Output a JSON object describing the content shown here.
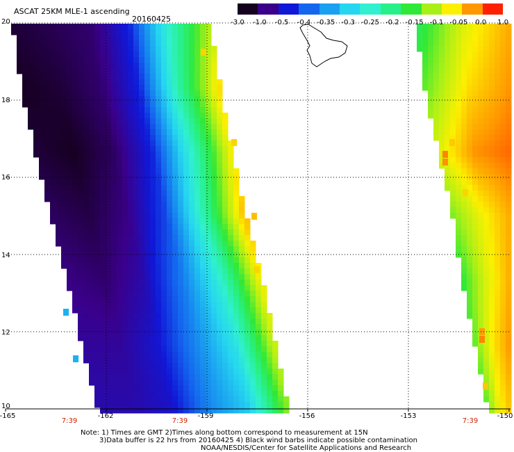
{
  "header": {
    "title": "ASCAT 25KM MLE-1 ascending",
    "date": "20160425"
  },
  "colorbar": {
    "labels": [
      "-3.0",
      "-1.0",
      "-0.5",
      "-0.4",
      "-0.35",
      "-0.3",
      "-0.25",
      "-0.2",
      "-0.15",
      "-0.1",
      "-0.05",
      "0.0",
      "1.0"
    ],
    "colors": [
      "#160020",
      "#3a008a",
      "#1018d8",
      "#1466ee",
      "#1aa0f0",
      "#26d6f0",
      "#30f0d0",
      "#28f088",
      "#30e838",
      "#a8f018",
      "#fcf000",
      "#ff9800",
      "#ff2000"
    ]
  },
  "map": {
    "lat_labels": [
      "20",
      "18",
      "16",
      "14",
      "12",
      "10"
    ],
    "lon_labels": [
      "-165",
      "-162",
      "-159",
      "-156",
      "-153",
      "-150"
    ],
    "time_labels": [
      "7:39",
      "7:39",
      "7:39"
    ],
    "land": "Big Island of Hawaii",
    "swath1_grid": [
      [
        0.02,
        0.04,
        0.06,
        0.18,
        0.5,
        0.75
      ],
      [
        0.0,
        0.02,
        0.06,
        0.18,
        0.55,
        0.85
      ],
      [
        0.02,
        0.0,
        0.05,
        0.18,
        0.5,
        0.82
      ],
      [
        0.05,
        0.03,
        0.08,
        0.22,
        0.55,
        0.88
      ],
      [
        0.08,
        0.06,
        0.12,
        0.28,
        0.5,
        0.82
      ],
      [
        0.1,
        0.1,
        0.16,
        0.3,
        0.45,
        0.78
      ],
      [
        0.12,
        0.12,
        0.15,
        0.3,
        0.4,
        0.72
      ]
    ],
    "swath2_grid": [
      [
        0.62,
        0.8,
        0.9
      ],
      [
        0.7,
        0.85,
        0.92
      ],
      [
        0.8,
        0.92,
        0.95
      ],
      [
        0.72,
        0.82,
        0.9
      ],
      [
        0.66,
        0.8,
        0.9
      ],
      [
        0.7,
        0.84,
        0.92
      ],
      [
        0.7,
        0.82,
        0.88
      ]
    ],
    "hot_pixels": [
      {
        "lon": -159.1,
        "lat": 19.25,
        "value": 0.86
      },
      {
        "lon": -158.2,
        "lat": 16.9,
        "value": 0.86
      },
      {
        "lon": -157.6,
        "lat": 15.0,
        "value": 0.88
      },
      {
        "lon": -157.5,
        "lat": 13.6,
        "value": 0.86
      },
      {
        "lon": -151.9,
        "lat": 16.6,
        "value": 0.93
      },
      {
        "lon": -151.9,
        "lat": 16.4,
        "value": 0.92
      },
      {
        "lon": -151.7,
        "lat": 16.9,
        "value": 0.87
      },
      {
        "lon": -151.3,
        "lat": 15.6,
        "value": 0.86
      },
      {
        "lon": -150.8,
        "lat": 12.0,
        "value": 0.91
      },
      {
        "lon": -150.8,
        "lat": 11.8,
        "value": 0.93
      },
      {
        "lon": -150.7,
        "lat": 10.6,
        "value": 0.87
      },
      {
        "lon": -163.2,
        "lat": 12.5,
        "value": 0.36
      },
      {
        "lon": -162.9,
        "lat": 11.3,
        "value": 0.36
      }
    ]
  },
  "notes": {
    "line1": "Note: 1) Times are GMT 2)Times along bottom correspond to measurement at 15N",
    "line2": "3)Data buffer is 22 hrs from 20160425 4) Black wind barbs indicate possible contamination",
    "line3": "NOAA/NESDIS/Center for Satellite Applications and Research"
  }
}
